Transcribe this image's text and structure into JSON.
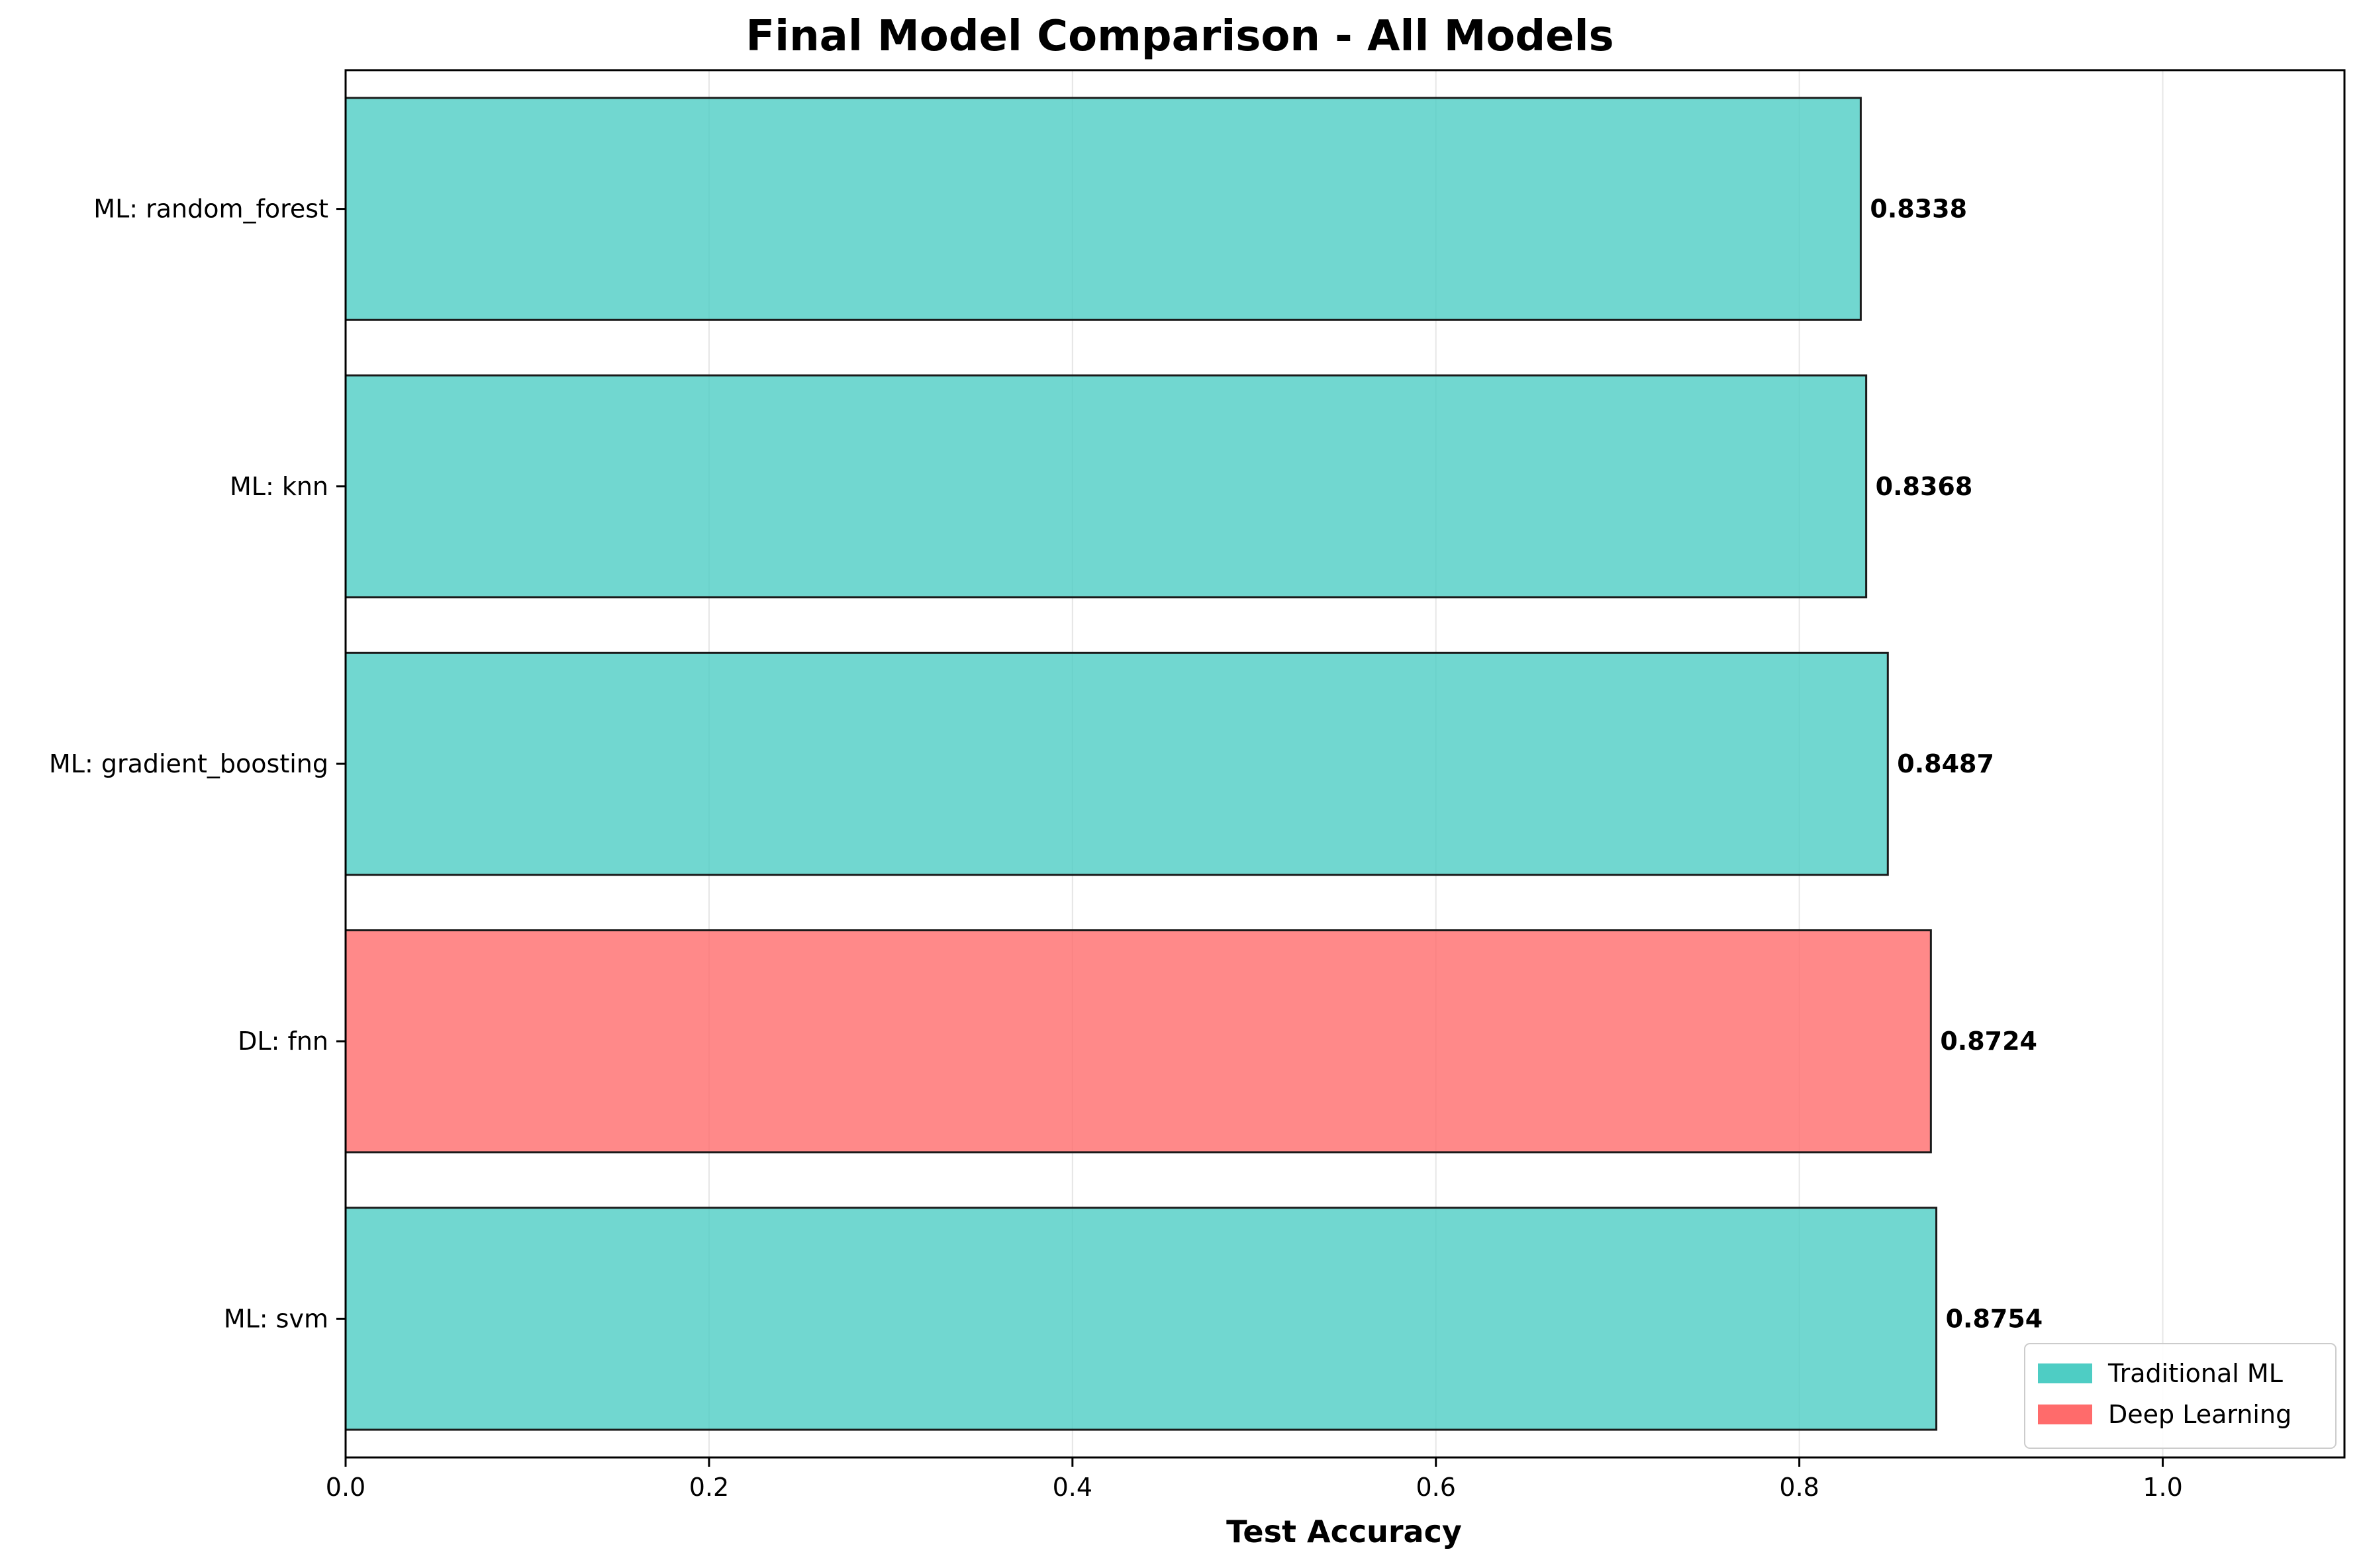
{
  "chart_data": {
    "type": "bar",
    "orientation": "horizontal",
    "title": "Final Model Comparison - All Models",
    "xlabel": "Test Accuracy",
    "ylabel": "",
    "xlim": [
      0.0,
      1.1
    ],
    "x_ticks": [
      "0.0",
      "0.2",
      "0.4",
      "0.6",
      "0.8",
      "1.0"
    ],
    "grid": "vertical",
    "categories": [
      "ML: random_forest",
      "ML: knn",
      "ML: gradient_boosting",
      "DL: fnn",
      "ML: svm"
    ],
    "values": [
      0.8338,
      0.8368,
      0.8487,
      0.8724,
      0.8754
    ],
    "value_labels": [
      "0.8338",
      "0.8368",
      "0.8487",
      "0.8724",
      "0.8754"
    ],
    "groups": [
      "Traditional ML",
      "Traditional ML",
      "Traditional ML",
      "Deep Learning",
      "Traditional ML"
    ],
    "legend": {
      "position": "bottom-right",
      "entries": [
        {
          "label": "Traditional ML",
          "color": "#4ECDC4"
        },
        {
          "label": "Deep Learning",
          "color": "#FF6B6B"
        }
      ]
    },
    "colors": {
      "Traditional ML": "#4ECDC4",
      "Deep Learning": "#FF6B6B"
    }
  }
}
